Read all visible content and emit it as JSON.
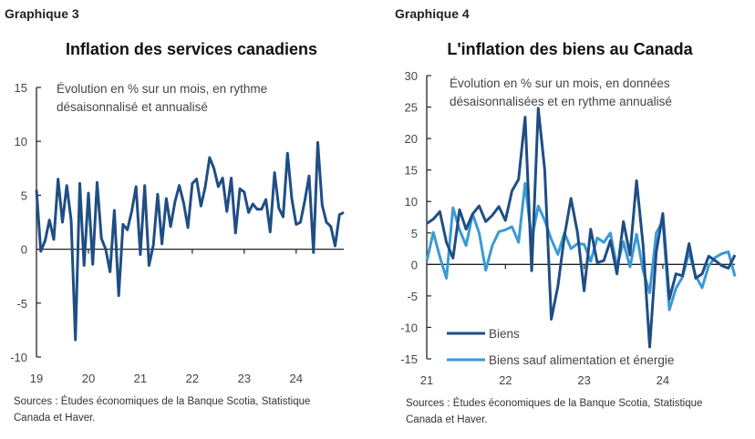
{
  "chart_data": [
    {
      "type": "line",
      "label": "Graphique 3",
      "title": "Inflation des services canadiens",
      "subtitle": [
        "Évolution en % sur un mois, en rythme",
        "désaisonnalisé et annualisé"
      ],
      "ylim": [
        -10,
        15
      ],
      "yticks": [
        "15",
        "10",
        "5",
        "0",
        "-5",
        "-10"
      ],
      "ytick_values": [
        15,
        10,
        5,
        0,
        -5,
        -10
      ],
      "xticks": [
        "19",
        "20",
        "21",
        "22",
        "23",
        "24"
      ],
      "x_start_month_index": 0,
      "months_per_tick": 12,
      "series": [
        {
          "name": "Services",
          "color": "#1f4e84",
          "values": [
            5.5,
            -0.2,
            0.8,
            2.7,
            0.9,
            6.5,
            2.5,
            5.9,
            2.7,
            -8.4,
            6.1,
            -1.5,
            5.2,
            -1.4,
            6.2,
            1.0,
            0,
            -2.1,
            3.6,
            -4.3,
            2.3,
            1.8,
            3.5,
            5.8,
            -0.5,
            5.9,
            -1.5,
            0.4,
            5.1,
            0.5,
            4.7,
            2.1,
            4.4,
            5.9,
            4.3,
            2.0,
            6.1,
            6.5,
            4.0,
            5.8,
            8.5,
            7.5,
            5.8,
            6.6,
            3.5,
            6.6,
            1.5,
            5.6,
            5.3,
            3.4,
            4.2,
            3.7,
            3.7,
            4.6,
            1.6,
            7.1,
            3.8,
            3.0,
            8.9,
            4.7,
            2.3,
            2.5,
            4.5,
            6.8,
            -0.3,
            9.9,
            4.1,
            2.5,
            2.1,
            0.3,
            3.2,
            3.4
          ]
        }
      ],
      "sources": [
        "Sources : Études économiques de la Banque Scotia, Statistique",
        "Canada et Haver."
      ]
    },
    {
      "type": "line",
      "label": "Graphique 4",
      "title": "L'inflation des biens au Canada",
      "subtitle": [
        "Évolution en % sur un mois, en données",
        "désaisonnalisées et en rythme annualisé"
      ],
      "ylim": [
        -15,
        30
      ],
      "yticks": [
        "30",
        "25",
        "20",
        "15",
        "10",
        "5",
        "0",
        "-5",
        "-10",
        "-15"
      ],
      "ytick_values": [
        30,
        25,
        20,
        15,
        10,
        5,
        0,
        -5,
        -10,
        -15
      ],
      "xticks": [
        "21",
        "22",
        "23",
        "24"
      ],
      "legend_position": "bottom-left",
      "series": [
        {
          "name": "Biens",
          "color": "#1f4e84",
          "values": [
            6.5,
            7.2,
            8.4,
            3.5,
            1.0,
            8.7,
            5.6,
            8.0,
            9.3,
            6.8,
            7.8,
            9.2,
            7.0,
            11.7,
            13.5,
            23.4,
            -1.0,
            24.8,
            15,
            -8.7,
            -3.5,
            4.5,
            10.5,
            5,
            -4.2,
            5.6,
            0.3,
            0.6,
            3.8,
            -1.5,
            6.8,
            1.5,
            13.3,
            3,
            -13.1,
            2,
            8.1,
            -5.5,
            -1.5,
            -1.8,
            3.3,
            -2.2,
            -1.5,
            1.3,
            0.6,
            -0.2,
            -0.6,
            1.5
          ]
        },
        {
          "name": "Biens sauf alimentation et énergie",
          "color": "#3a9ad6",
          "values": [
            0.5,
            5.1,
            1.2,
            -2.2,
            9.0,
            5.5,
            3.0,
            8.0,
            5.0,
            -0.9,
            3.0,
            5.2,
            5.5,
            6.0,
            3.5,
            12.9,
            4.0,
            9.3,
            7.0,
            4.0,
            1.6,
            5.0,
            2.5,
            3.3,
            3.2,
            0.5,
            4.2,
            3.5,
            5.0,
            -0.4,
            3.6,
            -0.4,
            4.8,
            -1.0,
            -4.5,
            5.0,
            6.9,
            -7.2,
            -3.8,
            -2.0,
            2.0,
            -1.8,
            -3.7,
            -0.2,
            1.1,
            1.7,
            2.0,
            -1.9
          ]
        }
      ],
      "sources": [
        "Sources : Études économiques de la Banque Scotia, Statistique",
        "Canada et Haver."
      ]
    }
  ]
}
